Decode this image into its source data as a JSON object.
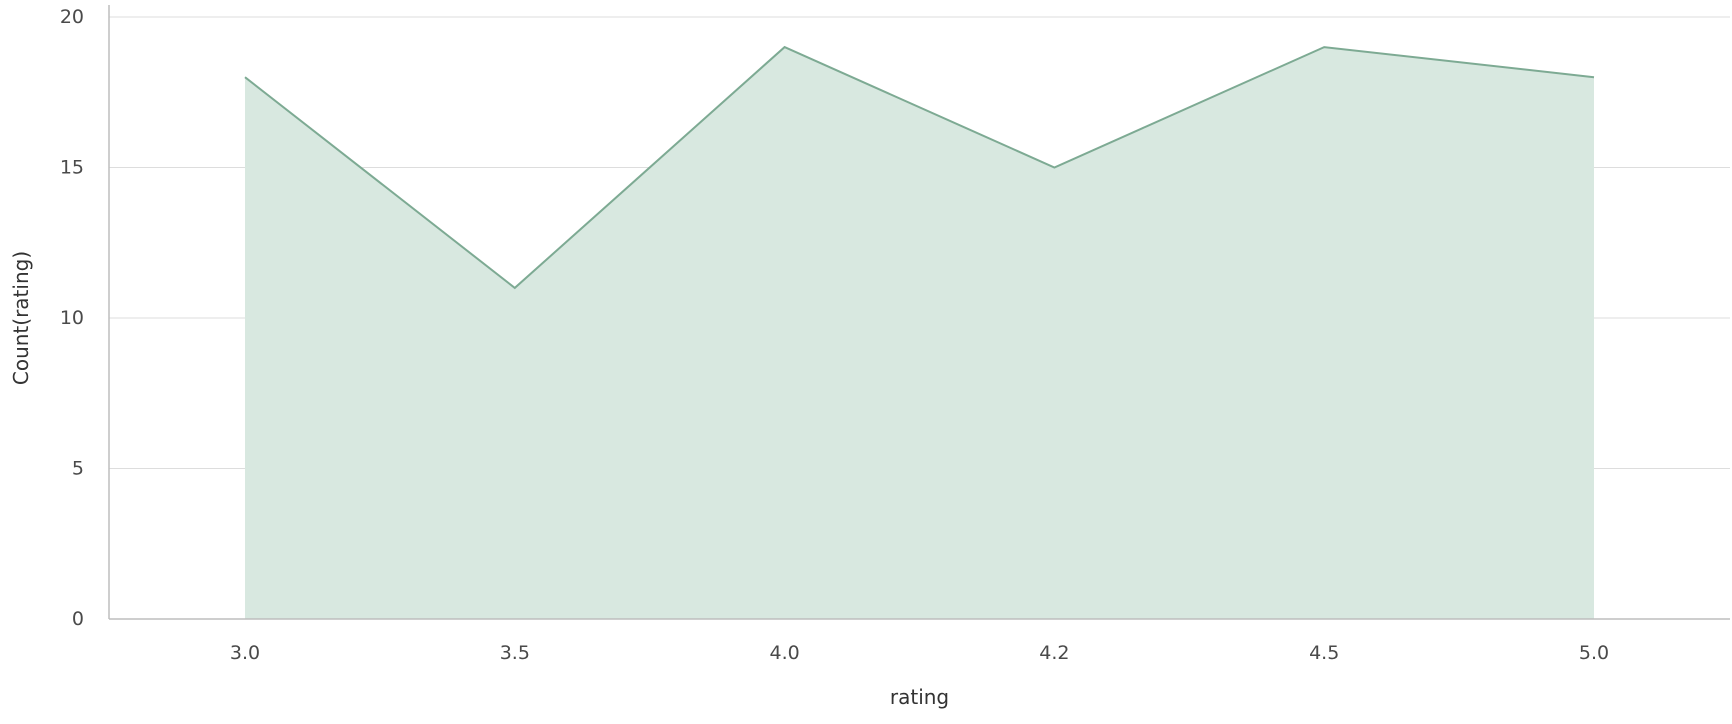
{
  "chart_data": {
    "type": "area",
    "categories": [
      "3.0",
      "3.5",
      "4.0",
      "4.2",
      "4.5",
      "5.0"
    ],
    "series": [
      {
        "values": [
          18,
          11,
          19,
          15,
          19,
          18
        ],
        "fill_color": "#d8e8e0",
        "line_color": "#7daa93"
      }
    ],
    "xlabel": "rating",
    "ylabel": "Count(rating)",
    "ylim": [
      0,
      20
    ],
    "yticks": [
      0,
      5,
      10,
      15,
      20
    ],
    "grid": true,
    "legend": "none"
  }
}
